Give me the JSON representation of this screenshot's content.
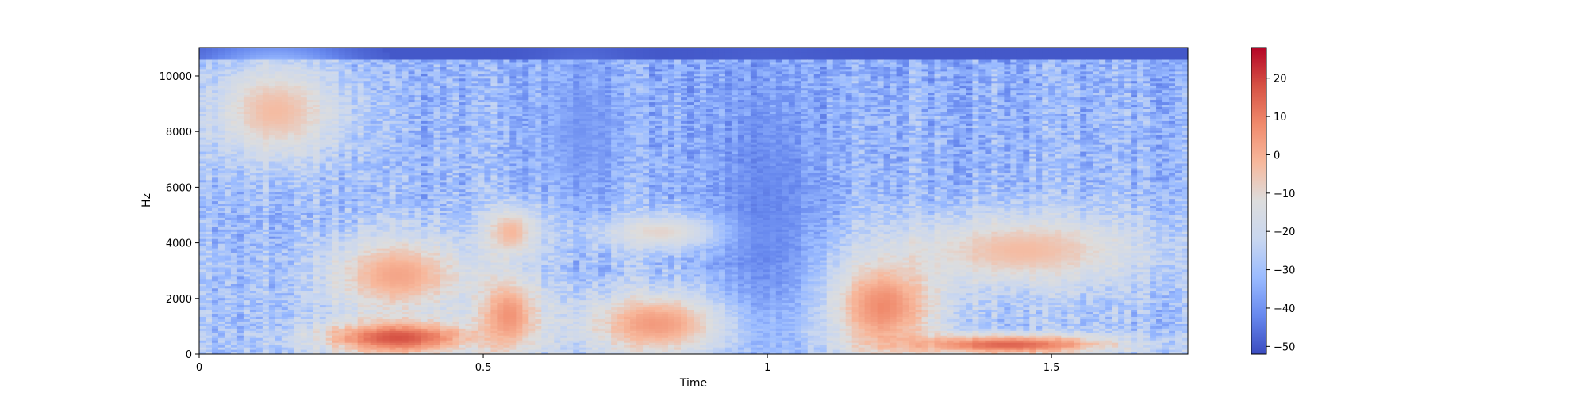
{
  "chart_data": {
    "type": "heatmap",
    "title": "",
    "xlabel": "Time",
    "ylabel": "Hz",
    "xlim": [
      0,
      1.74
    ],
    "ylim": [
      0,
      11025
    ],
    "x_ticks": [
      0,
      0.5,
      1,
      1.5
    ],
    "x_tick_labels": [
      "0",
      "0.5",
      "1",
      "1.5"
    ],
    "y_ticks": [
      0,
      2000,
      4000,
      6000,
      8000,
      10000
    ],
    "y_tick_labels": [
      "0",
      "2000",
      "4000",
      "6000",
      "8000",
      "10000"
    ],
    "colormap": "coolwarm",
    "colormap_stops": [
      "#3b4cc0",
      "#6788ee",
      "#9abbff",
      "#c9d7f0",
      "#dddddd",
      "#f7b89c",
      "#f08a6c",
      "#d65244",
      "#b40426"
    ],
    "colorbar": {
      "range": [
        -52,
        28
      ],
      "ticks": [
        -50,
        -40,
        -30,
        -20,
        -10,
        0,
        10,
        20
      ],
      "tick_labels": [
        "−50",
        "−40",
        "−30",
        "−20",
        "−10",
        "0",
        "10",
        "20"
      ]
    },
    "grid": false,
    "legend": "none",
    "energy_regions_db": [
      {
        "t": [
          0.02,
          0.25
        ],
        "f": [
          7000,
          10500
        ],
        "db": -3
      },
      {
        "t": [
          0.22,
          0.48
        ],
        "f": [
          0,
          1200
        ],
        "db": 18
      },
      {
        "t": [
          0.23,
          0.47
        ],
        "f": [
          1500,
          4200
        ],
        "db": 2
      },
      {
        "t": [
          0.49,
          0.6
        ],
        "f": [
          0,
          2800
        ],
        "db": 6
      },
      {
        "t": [
          0.5,
          0.6
        ],
        "f": [
          3500,
          5300
        ],
        "db": -2
      },
      {
        "t": [
          0.68,
          0.95
        ],
        "f": [
          0,
          2200
        ],
        "db": 5
      },
      {
        "t": [
          0.7,
          0.95
        ],
        "f": [
          3800,
          5000
        ],
        "db": -8
      },
      {
        "t": [
          1.1,
          1.3
        ],
        "f": [
          0,
          3500
        ],
        "db": 8
      },
      {
        "t": [
          1.25,
          1.65
        ],
        "f": [
          2500,
          5000
        ],
        "db": -3
      },
      {
        "t": [
          1.25,
          1.6
        ],
        "f": [
          0,
          700
        ],
        "db": 15
      },
      {
        "t": [
          0.9,
          1.1
        ],
        "f": [
          0,
          10000
        ],
        "db": -45
      },
      {
        "t": [
          0.6,
          0.75
        ],
        "f": [
          5500,
          10500
        ],
        "db": -40
      }
    ]
  }
}
